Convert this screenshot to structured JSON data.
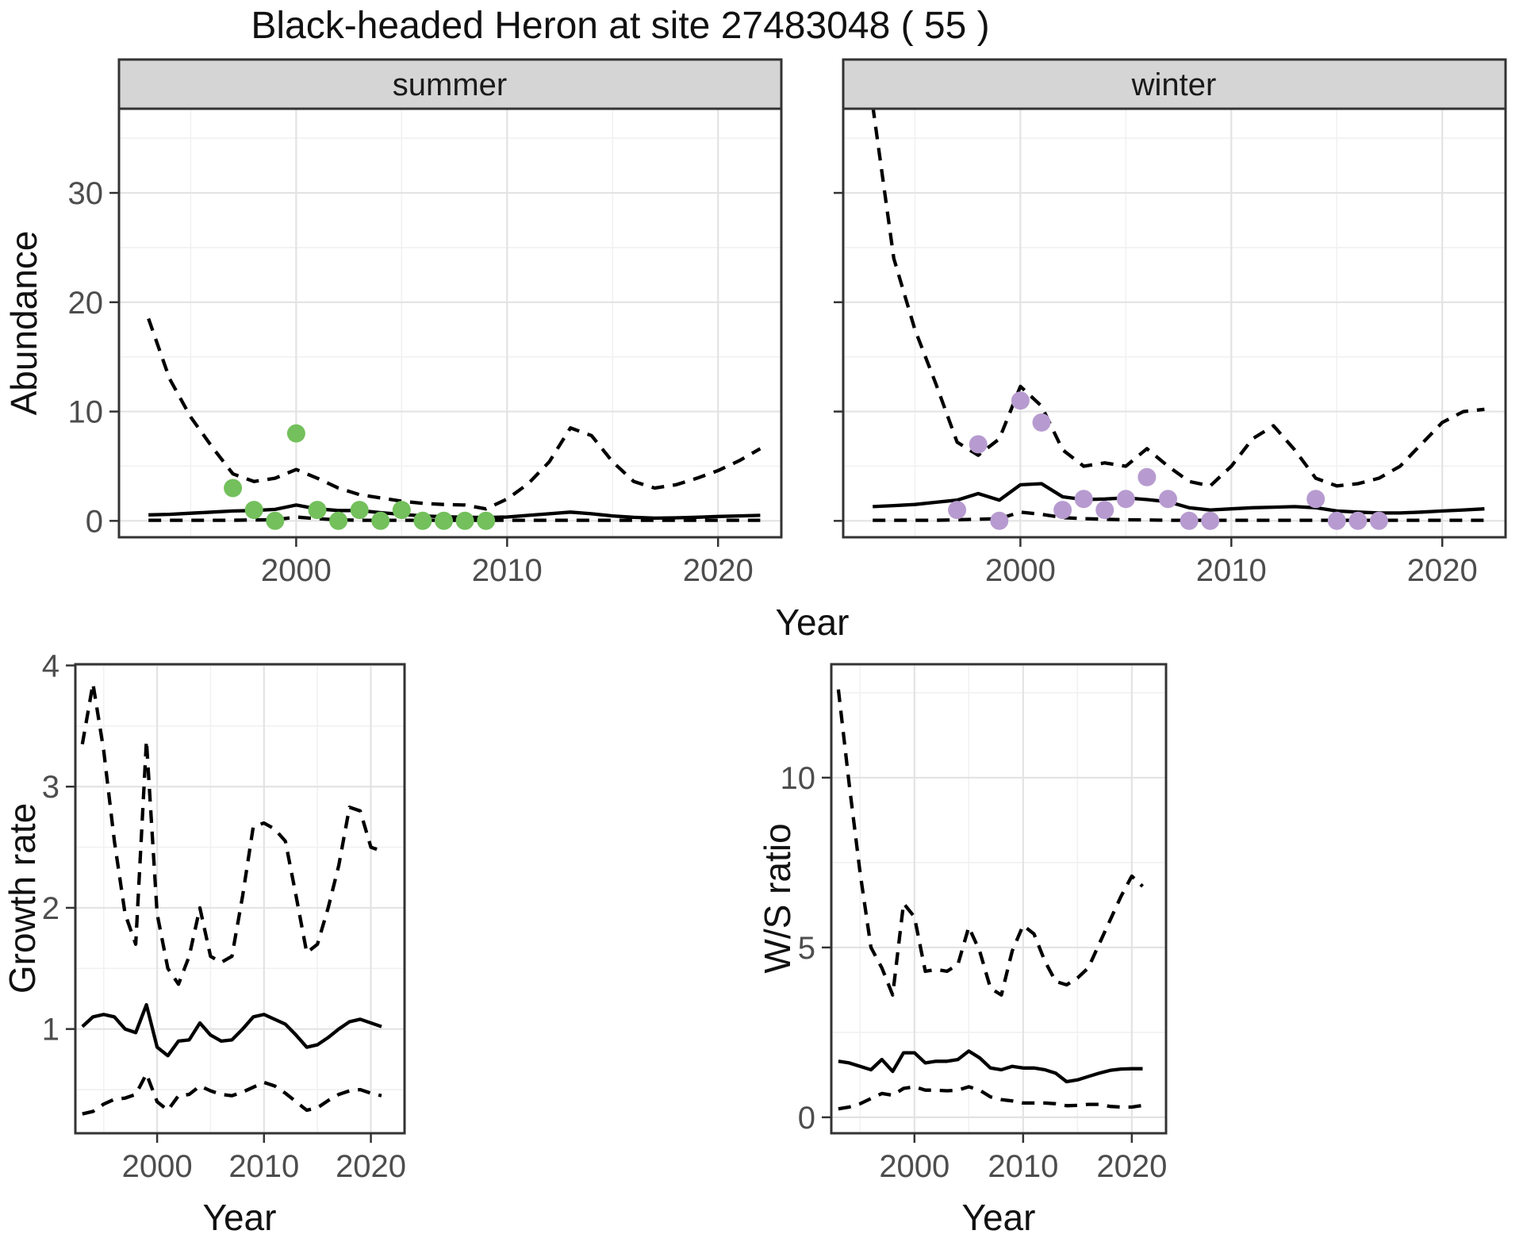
{
  "title": "Black-headed Heron at site 27483048 ( 55 )",
  "colors": {
    "summer_points": "#73c05c",
    "winter_points": "#b79bd0",
    "line": "#000000",
    "strip_fill": "#d5d5d5",
    "panel_border": "#333333",
    "grid_major": "#e3e3e3",
    "grid_minor": "#f1f1f1",
    "tick_text": "#4d4d4d"
  },
  "chart_data": [
    {
      "id": "abundance-summer",
      "type": "line",
      "facet": "summer",
      "xlabel": "Year",
      "ylabel": "Abundance",
      "xlim": [
        1991.6,
        2023.0
      ],
      "ylim": [
        -1.5,
        37.7
      ],
      "xticks": [
        2000,
        2010,
        2020
      ],
      "xminor": [
        1995,
        2005,
        2015
      ],
      "yticks": [
        0,
        10,
        20,
        30
      ],
      "yminor": [
        5,
        15,
        25,
        35
      ],
      "grid": true,
      "legend": "none",
      "years": [
        1993,
        1994,
        1995,
        1996,
        1997,
        1998,
        1999,
        2000,
        2001,
        2002,
        2003,
        2004,
        2005,
        2006,
        2007,
        2008,
        2009,
        2010,
        2011,
        2012,
        2013,
        2014,
        2015,
        2016,
        2017,
        2018,
        2019,
        2020,
        2021,
        2022
      ],
      "series": [
        {
          "name": "median",
          "style": "solid",
          "values": [
            0.55,
            0.6,
            0.7,
            0.8,
            0.9,
            0.95,
            1.05,
            1.45,
            1.1,
            0.95,
            0.95,
            0.75,
            0.6,
            0.45,
            0.38,
            0.33,
            0.3,
            0.35,
            0.5,
            0.65,
            0.8,
            0.65,
            0.45,
            0.32,
            0.25,
            0.28,
            0.33,
            0.4,
            0.45,
            0.5
          ]
        },
        {
          "name": "upper_ci",
          "style": "dashed",
          "values": [
            18.5,
            13.0,
            9.5,
            6.8,
            4.3,
            3.6,
            3.9,
            4.7,
            3.9,
            3.0,
            2.4,
            2.1,
            1.8,
            1.6,
            1.5,
            1.45,
            1.1,
            2.0,
            3.4,
            5.4,
            8.5,
            7.8,
            5.4,
            3.6,
            3.0,
            3.3,
            3.9,
            4.6,
            5.5,
            6.6
          ]
        },
        {
          "name": "lower_ci",
          "style": "dashed",
          "values": [
            0.05,
            0.05,
            0.05,
            0.05,
            0.05,
            0.08,
            0.1,
            0.35,
            0.2,
            0.1,
            0.05,
            0.05,
            0.05,
            0.05,
            0.05,
            0.05,
            0.05,
            0.05,
            0.05,
            0.05,
            0.05,
            0.05,
            0.05,
            0.05,
            0.05,
            0.05,
            0.05,
            0.05,
            0.05,
            0.05
          ]
        }
      ],
      "points": {
        "color": "#73c05c",
        "years": [
          1997,
          1998,
          1999,
          2000,
          2001,
          2002,
          2003,
          2004,
          2005,
          2006,
          2007,
          2008,
          2009
        ],
        "values": [
          3,
          1,
          0,
          8,
          1,
          0,
          1,
          0,
          1,
          0,
          0,
          0,
          0
        ]
      }
    },
    {
      "id": "abundance-winter",
      "type": "line",
      "facet": "winter",
      "xlabel": "Year",
      "ylabel": "Abundance",
      "xlim": [
        1991.6,
        2023.0
      ],
      "ylim": [
        -1.5,
        37.7
      ],
      "xticks": [
        2000,
        2010,
        2020
      ],
      "xminor": [
        1995,
        2005,
        2015
      ],
      "yticks": [
        0,
        10,
        20,
        30
      ],
      "yminor": [
        5,
        15,
        25,
        35
      ],
      "grid": true,
      "legend": "none",
      "years": [
        1993,
        1994,
        1995,
        1996,
        1997,
        1998,
        1999,
        2000,
        2001,
        2002,
        2003,
        2004,
        2005,
        2006,
        2007,
        2008,
        2009,
        2010,
        2011,
        2012,
        2013,
        2014,
        2015,
        2016,
        2017,
        2018,
        2019,
        2020,
        2021,
        2022
      ],
      "series": [
        {
          "name": "median",
          "style": "solid",
          "values": [
            1.3,
            1.4,
            1.5,
            1.7,
            1.9,
            2.5,
            1.9,
            3.3,
            3.4,
            2.2,
            1.95,
            2.0,
            2.1,
            1.95,
            1.75,
            1.2,
            1.0,
            1.1,
            1.2,
            1.25,
            1.3,
            1.2,
            0.9,
            0.8,
            0.72,
            0.72,
            0.8,
            0.9,
            1.0,
            1.1
          ]
        },
        {
          "name": "upper_ci",
          "style": "dashed",
          "values": [
            38.0,
            24.0,
            17.5,
            12.5,
            7.2,
            6.0,
            7.5,
            12.3,
            10.5,
            6.5,
            5.0,
            5.3,
            5.0,
            6.6,
            5.0,
            3.6,
            3.2,
            5.0,
            7.5,
            8.7,
            6.5,
            3.9,
            3.2,
            3.4,
            3.9,
            5.0,
            7.0,
            9.0,
            10.0,
            10.2
          ]
        },
        {
          "name": "lower_ci",
          "style": "dashed",
          "values": [
            0.05,
            0.05,
            0.05,
            0.05,
            0.1,
            0.15,
            0.2,
            0.8,
            0.6,
            0.3,
            0.2,
            0.15,
            0.1,
            0.08,
            0.05,
            0.05,
            0.05,
            0.05,
            0.05,
            0.05,
            0.05,
            0.05,
            0.05,
            0.05,
            0.05,
            0.05,
            0.05,
            0.05,
            0.05,
            0.05
          ]
        }
      ],
      "points": {
        "color": "#b79bd0",
        "years": [
          1997,
          1998,
          1999,
          2000,
          2001,
          2002,
          2003,
          2004,
          2005,
          2006,
          2007,
          2008,
          2009,
          2014,
          2015,
          2016,
          2017
        ],
        "values": [
          1,
          7,
          0,
          11,
          9,
          1,
          2,
          1,
          2,
          4,
          2,
          0,
          0,
          2,
          0,
          0,
          0
        ]
      }
    },
    {
      "id": "growth-rate",
      "type": "line",
      "facet": null,
      "xlabel": "Year",
      "ylabel": "Growth rate",
      "xlim": [
        1992.35,
        2023.15
      ],
      "ylim": [
        0.14,
        4.01
      ],
      "xticks": [
        2000,
        2010,
        2020
      ],
      "xminor": [
        1995,
        2005,
        2015
      ],
      "yticks": [
        1,
        2,
        3,
        4
      ],
      "yminor": [
        0.5,
        1.5,
        2.5,
        3.5
      ],
      "grid": true,
      "legend": "none",
      "years": [
        1993,
        1994,
        1995,
        1996,
        1997,
        1998,
        1999,
        2000,
        2001,
        2002,
        2003,
        2004,
        2005,
        2006,
        2007,
        2008,
        2009,
        2010,
        2011,
        2012,
        2013,
        2014,
        2015,
        2016,
        2017,
        2018,
        2019,
        2020,
        2021
      ],
      "series": [
        {
          "name": "median",
          "style": "solid",
          "values": [
            1.02,
            1.1,
            1.12,
            1.1,
            1.0,
            0.97,
            1.2,
            0.85,
            0.78,
            0.9,
            0.91,
            1.05,
            0.95,
            0.9,
            0.91,
            1.0,
            1.1,
            1.12,
            1.08,
            1.04,
            0.95,
            0.85,
            0.87,
            0.93,
            1.0,
            1.06,
            1.08,
            1.05,
            1.02
          ]
        },
        {
          "name": "upper_ci",
          "style": "dashed",
          "values": [
            3.35,
            3.85,
            3.3,
            2.55,
            1.95,
            1.7,
            3.38,
            1.95,
            1.5,
            1.37,
            1.6,
            2.0,
            1.6,
            1.55,
            1.6,
            2.1,
            2.67,
            2.7,
            2.65,
            2.55,
            2.1,
            1.63,
            1.7,
            2.0,
            2.35,
            2.83,
            2.8,
            2.5,
            2.47
          ]
        },
        {
          "name": "lower_ci",
          "style": "dashed",
          "values": [
            0.3,
            0.32,
            0.38,
            0.42,
            0.43,
            0.46,
            0.63,
            0.4,
            0.33,
            0.45,
            0.46,
            0.53,
            0.49,
            0.46,
            0.45,
            0.48,
            0.52,
            0.56,
            0.53,
            0.47,
            0.4,
            0.33,
            0.35,
            0.41,
            0.46,
            0.49,
            0.5,
            0.47,
            0.45
          ]
        }
      ],
      "points": null
    },
    {
      "id": "ws-ratio",
      "type": "line",
      "facet": null,
      "xlabel": "Year",
      "ylabel": "W/S ratio",
      "xlim": [
        1992.35,
        2023.15
      ],
      "ylim": [
        -0.47,
        13.34
      ],
      "xticks": [
        2000,
        2010,
        2020
      ],
      "xminor": [
        1995,
        2005,
        2015
      ],
      "yticks": [
        0,
        5,
        10
      ],
      "yminor": [
        2.5,
        7.5,
        12.5
      ],
      "grid": true,
      "legend": "none",
      "years": [
        1993,
        1994,
        1995,
        1996,
        1997,
        1998,
        1999,
        2000,
        2001,
        2002,
        2003,
        2004,
        2005,
        2006,
        2007,
        2008,
        2009,
        2010,
        2011,
        2012,
        2013,
        2014,
        2015,
        2016,
        2017,
        2018,
        2019,
        2020,
        2021
      ],
      "series": [
        {
          "name": "median",
          "style": "solid",
          "values": [
            1.65,
            1.6,
            1.5,
            1.4,
            1.7,
            1.35,
            1.9,
            1.9,
            1.6,
            1.65,
            1.65,
            1.7,
            1.95,
            1.75,
            1.45,
            1.4,
            1.5,
            1.45,
            1.45,
            1.4,
            1.3,
            1.05,
            1.1,
            1.2,
            1.3,
            1.38,
            1.42,
            1.43,
            1.43
          ]
        },
        {
          "name": "upper_ci",
          "style": "dashed",
          "values": [
            12.6,
            9.8,
            7.2,
            5.0,
            4.4,
            3.6,
            6.3,
            5.9,
            4.3,
            4.35,
            4.3,
            4.5,
            5.6,
            4.9,
            3.8,
            3.6,
            4.9,
            5.65,
            5.4,
            4.6,
            4.0,
            3.9,
            4.1,
            4.4,
            5.1,
            5.8,
            6.5,
            7.1,
            6.8
          ]
        },
        {
          "name": "lower_ci",
          "style": "dashed",
          "values": [
            0.25,
            0.3,
            0.4,
            0.55,
            0.7,
            0.65,
            0.85,
            0.9,
            0.8,
            0.8,
            0.78,
            0.8,
            0.9,
            0.8,
            0.6,
            0.52,
            0.48,
            0.42,
            0.42,
            0.42,
            0.4,
            0.34,
            0.35,
            0.38,
            0.38,
            0.32,
            0.3,
            0.3,
            0.35
          ]
        }
      ],
      "points": null
    }
  ]
}
